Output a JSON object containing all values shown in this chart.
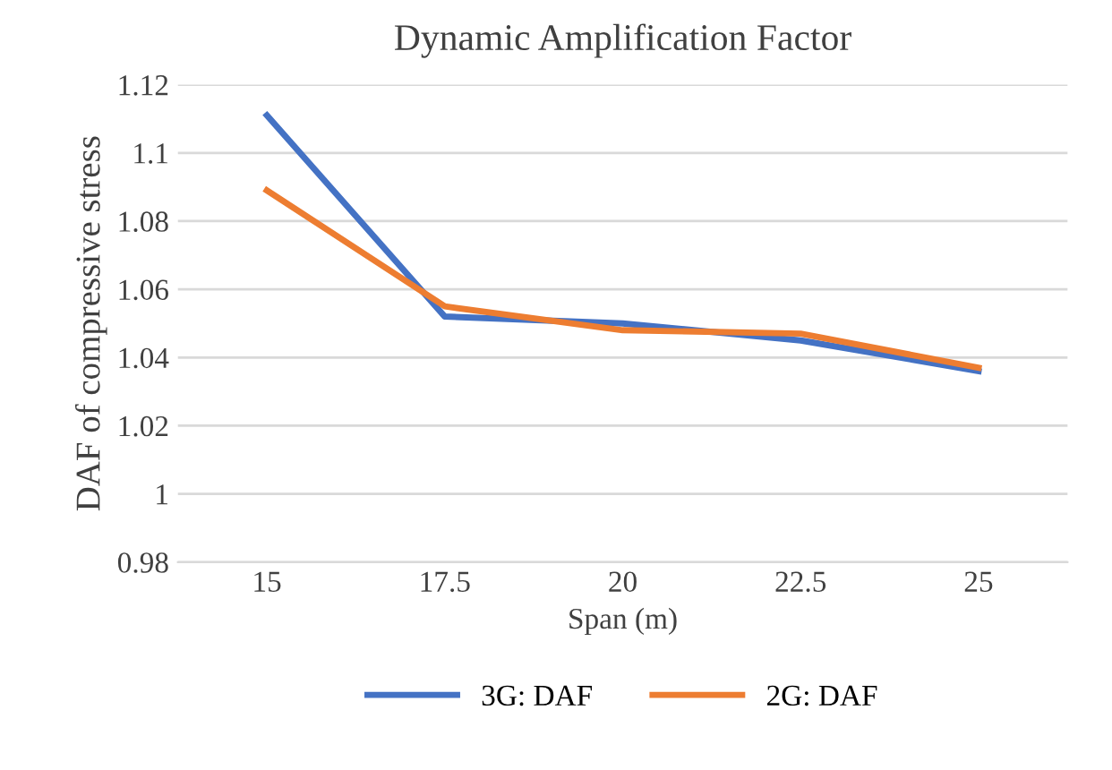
{
  "chart_data": {
    "type": "line",
    "title": "Dynamic Amplification Factor",
    "xlabel": "Span (m)",
    "ylabel": "DAF of compressive stress",
    "categories": [
      "15",
      "17.5",
      "20",
      "22.5",
      "25"
    ],
    "series": [
      {
        "name": "3G: DAF",
        "color": "#4472c4",
        "values": [
          1.111,
          1.052,
          1.05,
          1.045,
          1.036
        ]
      },
      {
        "name": "2G: DAF",
        "color": "#ed7d31",
        "values": [
          1.089,
          1.055,
          1.048,
          1.047,
          1.037
        ]
      }
    ],
    "ylim": [
      0.98,
      1.12
    ],
    "yticks": [
      0.98,
      {
        "value": 1,
        "label": "1"
      },
      1.02,
      1.04,
      1.06,
      1.08,
      {
        "value": 1.1,
        "label": "1.1"
      },
      1.12
    ],
    "grid": "y",
    "legend": "bottom",
    "line_style": "solid",
    "marker": "none"
  }
}
